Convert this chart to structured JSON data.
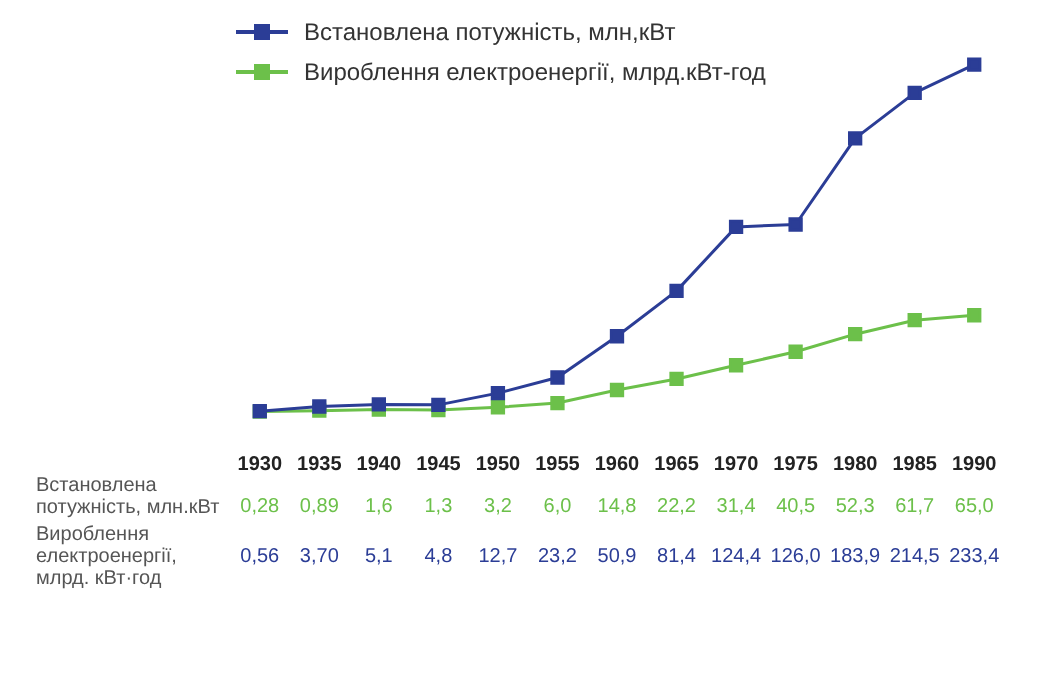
{
  "chart_data": {
    "type": "line",
    "categories": [
      "1930",
      "1935",
      "1940",
      "1945",
      "1950",
      "1955",
      "1960",
      "1965",
      "1970",
      "1975",
      "1980",
      "1985",
      "1990"
    ],
    "series": [
      {
        "name": "Встановлена потужність, млн,кВт",
        "color": "#2b3d96",
        "values": [
          0.56,
          3.7,
          5.1,
          4.8,
          12.7,
          23.2,
          50.9,
          81.4,
          124.4,
          126.0,
          183.9,
          214.5,
          233.4
        ],
        "value_labels": [
          "0,56",
          "3,70",
          "5,1",
          "4,8",
          "12,7",
          "23,2",
          "50,9",
          "81,4",
          "124,4",
          "126,0",
          "183,9",
          "214,5",
          "233,4"
        ]
      },
      {
        "name": "Вироблення електроенергії, млрд.кВт-год",
        "color": "#6cc04a",
        "values": [
          0.28,
          0.89,
          1.6,
          1.3,
          3.2,
          6.0,
          14.8,
          22.2,
          31.4,
          40.5,
          52.3,
          61.7,
          65.0
        ],
        "value_labels": [
          "0,28",
          "0,89",
          "1,6",
          "1,3",
          "3,2",
          "6,0",
          "14,8",
          "22,2",
          "31,4",
          "40,5",
          "52,3",
          "61,7",
          "65,0"
        ]
      }
    ],
    "annotations": [
      "Встановлена потужність, млн.кВт",
      "Вироблення електроенергії, млрд. кВт·год"
    ],
    "legend": "top left",
    "marker": "square",
    "line_style": "solid",
    "grid": false
  }
}
